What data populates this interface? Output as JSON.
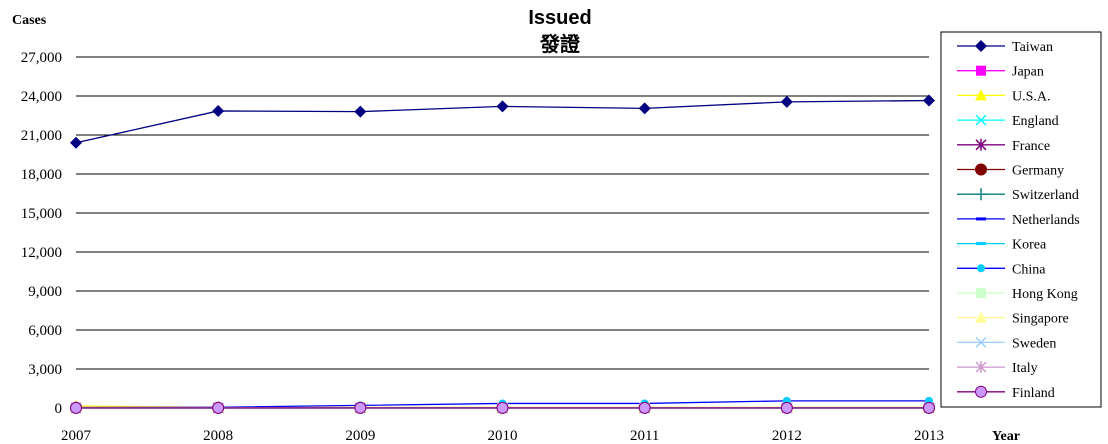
{
  "chart_data": {
    "type": "line",
    "title": "Issued",
    "subtitle": "發證",
    "ylabel": "Cases",
    "xlabel": "Year",
    "ylim": [
      0,
      27000
    ],
    "yticks": [
      0,
      3000,
      6000,
      9000,
      12000,
      15000,
      18000,
      21000,
      24000,
      27000
    ],
    "ytick_labels": [
      "0",
      "3,000",
      "6,000",
      "9,000",
      "12,000",
      "15,000",
      "18,000",
      "21,000",
      "24,000",
      "27,000"
    ],
    "x": [
      "2007",
      "2008",
      "2009",
      "2010",
      "2011",
      "2012",
      "2013"
    ],
    "grid": true,
    "legend_position": "right",
    "series": [
      {
        "name": "Taiwan",
        "color": "#000080",
        "marker": "diamond",
        "values": [
          20400,
          22850,
          22800,
          23200,
          23050,
          23550,
          23650
        ]
      },
      {
        "name": "Japan",
        "color": "#ff00ff",
        "marker": "square",
        "values": [
          30,
          25,
          25,
          25,
          25,
          25,
          25
        ]
      },
      {
        "name": "U.S.A.",
        "color": "#ffff00",
        "marker": "triangle",
        "values": [
          150,
          60,
          50,
          50,
          50,
          50,
          50
        ]
      },
      {
        "name": "England",
        "color": "#00ffff",
        "marker": "x",
        "values": [
          10,
          10,
          10,
          10,
          10,
          10,
          10
        ]
      },
      {
        "name": "France",
        "color": "#800080",
        "marker": "star",
        "values": [
          5,
          5,
          5,
          5,
          5,
          5,
          5
        ]
      },
      {
        "name": "Germany",
        "color": "#800000",
        "marker": "circle",
        "values": [
          15,
          15,
          15,
          15,
          15,
          15,
          15
        ]
      },
      {
        "name": "Switzerland",
        "color": "#008080",
        "marker": "plus",
        "values": [
          5,
          5,
          5,
          5,
          5,
          5,
          5
        ]
      },
      {
        "name": "Netherlands",
        "color": "#0000ff",
        "marker": "dash",
        "values": [
          5,
          5,
          5,
          5,
          5,
          5,
          5
        ]
      },
      {
        "name": "Korea",
        "color": "#00ccff",
        "marker": "dash",
        "values": [
          10,
          10,
          10,
          10,
          10,
          10,
          10
        ]
      },
      {
        "name": "China",
        "color": "#0000ff",
        "line_color": "#0000ff",
        "marker_color": "#00ccff",
        "marker": "circle-small",
        "values": [
          40,
          60,
          200,
          350,
          350,
          550,
          550
        ]
      },
      {
        "name": "Hong Kong",
        "color": "#ccffcc",
        "marker": "square",
        "values": [
          20,
          20,
          20,
          20,
          20,
          20,
          20
        ]
      },
      {
        "name": "Singapore",
        "color": "#ffff99",
        "marker": "triangle",
        "values": [
          5,
          5,
          5,
          5,
          5,
          5,
          5
        ]
      },
      {
        "name": "Sweden",
        "color": "#99ccff",
        "marker": "x",
        "values": [
          5,
          5,
          5,
          5,
          5,
          5,
          5
        ]
      },
      {
        "name": "Italy",
        "color": "#cc99cc",
        "marker": "star",
        "values": [
          5,
          5,
          5,
          5,
          5,
          5,
          5
        ]
      },
      {
        "name": "Finland",
        "color": "#800080",
        "marker_fill": "#cc99ff",
        "marker": "circle",
        "values": [
          10,
          10,
          10,
          10,
          10,
          10,
          10
        ]
      }
    ]
  }
}
